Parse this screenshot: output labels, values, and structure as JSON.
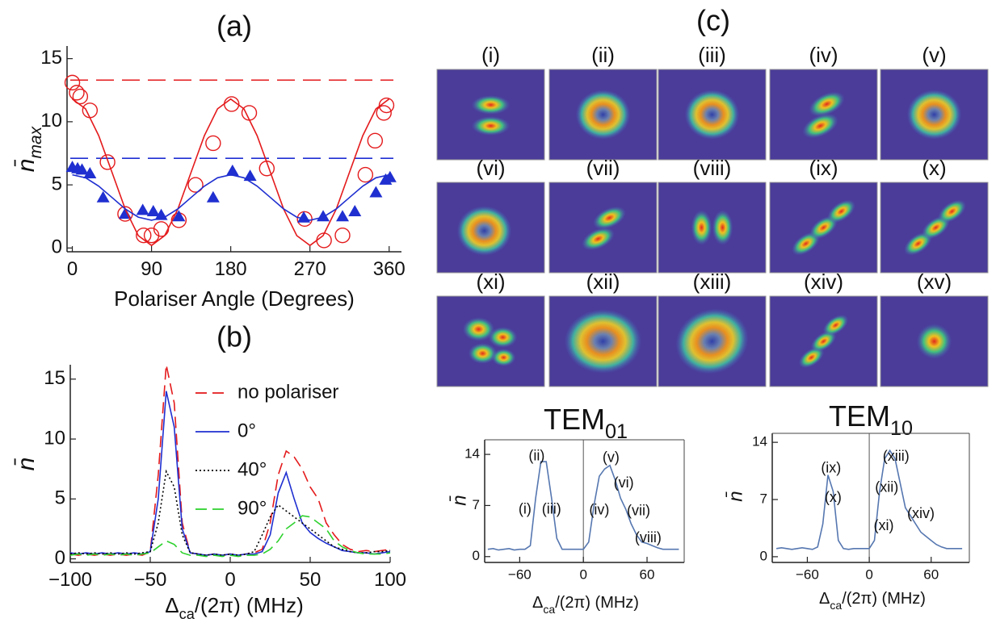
{
  "chart_data": [
    {
      "type": "scatter",
      "title": "(a)",
      "xlabel": "Polariser Angle (Degrees)",
      "ylabel": [
        "n̄",
        "max"
      ],
      "xlim": [
        -6,
        374
      ],
      "ylim": [
        -0.3,
        16
      ],
      "xticks": [
        0,
        90,
        180,
        270,
        360
      ],
      "yticks": [
        0,
        5,
        10,
        15
      ],
      "hlines": [
        {
          "value": 13.3,
          "color": "#e41a1c"
        },
        {
          "value": 7.1,
          "color": "#1f2fd0"
        }
      ],
      "series": [
        {
          "kind": "marker",
          "marker": "circle",
          "color": "#e41a1c",
          "x": [
            0,
            5,
            9,
            20,
            40,
            60,
            81,
            90,
            101,
            121,
            140,
            160,
            181,
            201,
            221,
            264,
            286,
            307,
            333,
            344,
            354,
            357
          ],
          "values": [
            13.1,
            12.3,
            12.0,
            10.9,
            6.8,
            2.7,
            1.0,
            1.0,
            1.5,
            2.2,
            5.0,
            8.3,
            11.4,
            10.7,
            6.3,
            2.3,
            0.6,
            1.0,
            5.8,
            8.5,
            10.7,
            11.3
          ]
        },
        {
          "kind": "marker",
          "marker": "triangle",
          "color": "#1f2fd0",
          "x": [
            0,
            6,
            11,
            20,
            35,
            60,
            80,
            92,
            101,
            121,
            160,
            182,
            202,
            263,
            285,
            307,
            321,
            345,
            356,
            361
          ],
          "values": [
            6.4,
            6.3,
            6.2,
            5.9,
            4.0,
            2.7,
            3.0,
            2.9,
            2.6,
            2.5,
            4.0,
            6.1,
            5.7,
            2.4,
            2.5,
            2.5,
            2.9,
            4.4,
            5.4,
            5.6
          ]
        },
        {
          "kind": "line",
          "color": "#e41a1c",
          "x": [
            0,
            15,
            30,
            45,
            60,
            75,
            90,
            105,
            120,
            135,
            150,
            165,
            180,
            195,
            210,
            225,
            240,
            255,
            270,
            285,
            300,
            315,
            330,
            345,
            360
          ],
          "values": [
            11.8,
            11.02,
            8.9,
            6.0,
            3.1,
            0.98,
            0.2,
            0.98,
            3.1,
            6.0,
            8.9,
            11.02,
            11.8,
            11.02,
            8.9,
            6.0,
            3.1,
            0.98,
            0.2,
            0.98,
            3.1,
            6.0,
            8.9,
            11.02,
            11.8
          ]
        },
        {
          "kind": "line",
          "color": "#1f2fd0",
          "x": [
            0,
            15,
            30,
            45,
            60,
            75,
            90,
            105,
            120,
            135,
            150,
            165,
            180,
            195,
            210,
            225,
            240,
            255,
            270,
            285,
            300,
            315,
            330,
            345,
            360
          ],
          "values": [
            5.8,
            5.56,
            4.9,
            4.0,
            3.1,
            2.44,
            2.2,
            2.44,
            3.1,
            4.0,
            4.9,
            5.56,
            5.8,
            5.56,
            4.9,
            4.0,
            3.1,
            2.44,
            2.2,
            2.44,
            3.1,
            4.0,
            4.9,
            5.56,
            5.8
          ]
        }
      ]
    },
    {
      "type": "line",
      "title": "(b)",
      "xlabel": [
        "Δ",
        "ca",
        "/(2π) (MHz)"
      ],
      "ylabel": "n̄",
      "xlim": [
        -100,
        100
      ],
      "ylim": [
        -0.3,
        16.2
      ],
      "xticks": [
        {
          "value": -100,
          "label": "−100"
        },
        {
          "value": -50,
          "label": "−50"
        },
        0,
        50,
        100
      ],
      "yticks": [
        0,
        5,
        10,
        15
      ],
      "x": [
        -100,
        -95,
        -90,
        -85,
        -80,
        -75,
        -70,
        -65,
        -60,
        -55,
        -50,
        -45,
        -40,
        -35,
        -30,
        -25,
        -20,
        -15,
        -10,
        -5,
        0,
        5,
        10,
        15,
        20,
        25,
        30,
        35,
        40,
        45,
        50,
        55,
        60,
        65,
        70,
        75,
        80,
        85,
        90,
        95,
        100
      ],
      "series": [
        {
          "name": "no polariser",
          "color": "#e41a1c",
          "dash": "dashed",
          "values": [
            0.4,
            0.3,
            0.4,
            0.3,
            0.4,
            0.3,
            0.4,
            0.3,
            0.4,
            0.3,
            0.6,
            7,
            16.2,
            13,
            3,
            0.5,
            0.4,
            0.3,
            0.4,
            0.3,
            0.4,
            0.3,
            0.4,
            0.5,
            0.8,
            3,
            7,
            9,
            8.5,
            7.5,
            6,
            5,
            3,
            2,
            1.2,
            0.8,
            0.6,
            0.7,
            0.6,
            0.7,
            0.8
          ]
        },
        {
          "name": "0°",
          "color": "#1f2fd0",
          "dash": "solid",
          "values": [
            0.5,
            0.4,
            0.5,
            0.4,
            0.5,
            0.4,
            0.5,
            0.4,
            0.5,
            0.4,
            0.6,
            5,
            14,
            11,
            2.5,
            0.5,
            0.4,
            0.3,
            0.4,
            0.3,
            0.4,
            0.3,
            0.4,
            0.4,
            0.6,
            2,
            5.5,
            7.2,
            5,
            3,
            2.2,
            1.7,
            1.3,
            1,
            0.7,
            0.6,
            0.5,
            0.5,
            0.4,
            0.5,
            0.6
          ]
        },
        {
          "name": "40°",
          "color": "#000000",
          "dash": "dotted",
          "values": [
            0.4,
            0.5,
            0.4,
            0.5,
            0.4,
            0.5,
            0.4,
            0.5,
            0.4,
            0.5,
            0.6,
            3,
            7.3,
            6,
            2,
            0.5,
            0.4,
            0.3,
            0.4,
            0.3,
            0.4,
            0.3,
            0.4,
            0.6,
            2,
            3.5,
            4.5,
            4,
            3.5,
            3,
            2.5,
            2,
            1.5,
            1,
            0.8,
            0.6,
            0.5,
            0.5,
            0.6,
            0.6,
            0.7
          ]
        },
        {
          "name": "90°",
          "color": "#2ed12e",
          "dash": "dashed",
          "values": [
            0.3,
            0.4,
            0.3,
            0.4,
            0.3,
            0.4,
            0.3,
            0.4,
            0.3,
            0.4,
            0.5,
            1,
            1.5,
            1.2,
            0.5,
            0.3,
            0.3,
            0.2,
            0.3,
            0.2,
            0.3,
            0.2,
            0.3,
            0.3,
            0.4,
            0.8,
            1.5,
            2.5,
            3,
            3.6,
            3.5,
            3,
            2.5,
            1.5,
            1,
            0.7,
            0.5,
            0.4,
            0.4,
            0.4,
            0.5
          ]
        }
      ]
    },
    {
      "type": "line",
      "title": [
        "TEM",
        "01"
      ],
      "xlabel": [
        "Δ",
        "ca",
        "/(2π) (MHz)"
      ],
      "ylabel": "n̄",
      "xlim": [
        -93,
        95
      ],
      "ylim": [
        -0.8,
        16
      ],
      "xticks": [
        {
          "value": -60,
          "label": "−60"
        },
        0,
        60
      ],
      "yticks": [
        0,
        7,
        14
      ],
      "x": [
        -90,
        -85,
        -80,
        -75,
        -70,
        -65,
        -60,
        -55,
        -50,
        -45,
        -40,
        -35,
        -30,
        -25,
        -20,
        -15,
        -10,
        -5,
        0,
        5,
        10,
        15,
        20,
        25,
        30,
        35,
        40,
        45,
        50,
        55,
        60,
        65,
        70,
        75,
        80,
        85,
        90
      ],
      "series": [
        {
          "color": "#5677b0",
          "dash": "solid",
          "values": [
            1,
            1.1,
            0.9,
            1,
            1.1,
            0.9,
            1,
            1,
            1.5,
            8,
            13,
            13,
            8,
            2.5,
            1,
            1,
            1,
            1,
            1,
            2,
            7,
            11,
            12,
            12.5,
            10.5,
            8,
            6.5,
            4.5,
            3,
            2,
            1.8,
            1.5,
            1.2,
            1,
            1,
            1,
            1
          ]
        }
      ],
      "annotations": [
        "(ii)",
        "(i)",
        "(iii)",
        "(v)",
        "(vi)",
        "(iv)",
        "(vii)",
        "(viii)"
      ]
    },
    {
      "type": "line",
      "title": [
        "TEM",
        "10"
      ],
      "xlabel": [
        "Δ",
        "ca",
        "/(2π) (MHz)"
      ],
      "ylabel": "n̄",
      "xlim": [
        -94,
        97
      ],
      "ylim": [
        -0.7,
        15.1
      ],
      "xticks": [
        {
          "value": -60,
          "label": "−60"
        },
        0,
        60
      ],
      "yticks": [
        0,
        7,
        14
      ],
      "x": [
        -90,
        -85,
        -80,
        -75,
        -70,
        -65,
        -60,
        -55,
        -50,
        -45,
        -40,
        -35,
        -30,
        -25,
        -20,
        -15,
        -10,
        -5,
        0,
        5,
        10,
        15,
        20,
        25,
        30,
        35,
        40,
        45,
        50,
        55,
        60,
        65,
        70,
        75,
        80,
        85,
        90
      ],
      "series": [
        {
          "color": "#5677b0",
          "dash": "solid",
          "values": [
            1,
            1.1,
            1,
            0.9,
            1,
            1.1,
            1,
            0.9,
            1.2,
            4,
            10,
            8,
            2,
            1,
            0.9,
            1,
            1,
            1,
            1,
            2,
            8,
            12,
            13,
            12,
            9,
            6,
            5,
            4,
            3,
            2.5,
            2,
            1.5,
            1.2,
            1,
            1,
            1,
            1
          ]
        }
      ],
      "annotations": [
        "(ix)",
        "(x)",
        "(xiii)",
        "(xii)",
        "(xi)",
        "(xiv)"
      ]
    }
  ],
  "panel_c": {
    "title": "(c)",
    "labels": [
      "(i)",
      "(ii)",
      "(iii)",
      "(iv)",
      "(v)",
      "(vi)",
      "(vii)",
      "(viii)",
      "(ix)",
      "(x)",
      "(xi)",
      "(xii)",
      "(xiii)",
      "(xiv)",
      "(xv)"
    ]
  }
}
